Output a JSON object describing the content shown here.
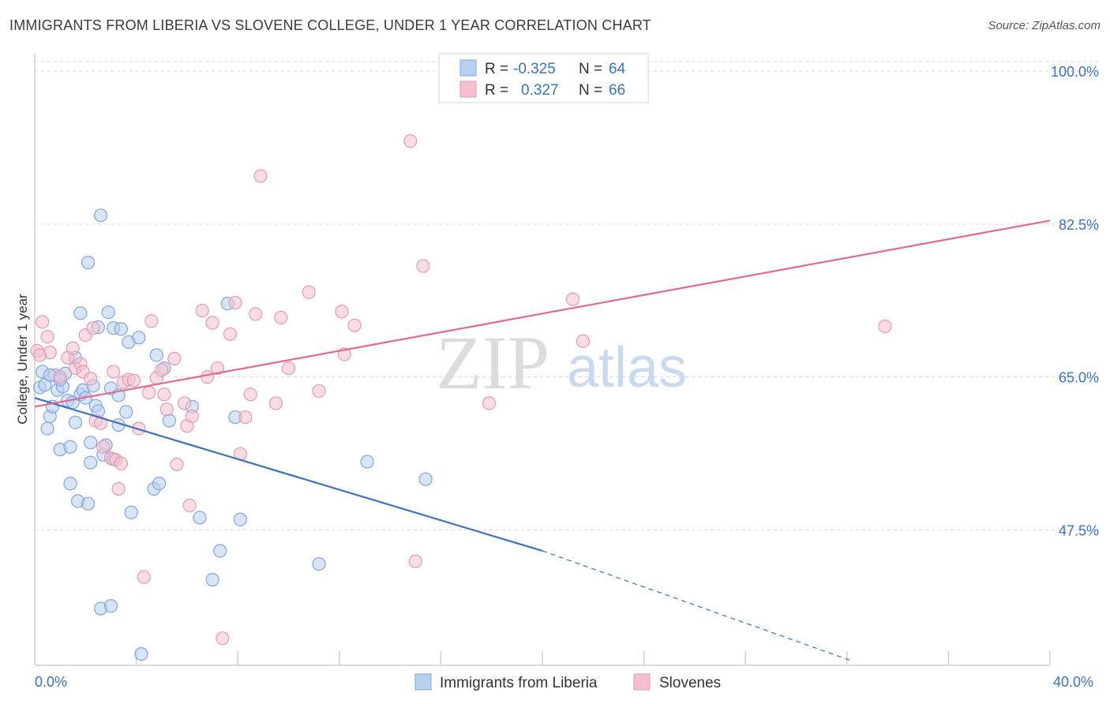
{
  "title": "IMMIGRANTS FROM LIBERIA VS SLOVENE COLLEGE, UNDER 1 YEAR CORRELATION CHART",
  "source": "Source: ZipAtlas.com",
  "watermark": {
    "zip": "ZIP",
    "atlas": "atlas"
  },
  "legend": {
    "r_label": "R =",
    "n_label": "N =",
    "rows": [
      {
        "r": "-0.325",
        "n": "64"
      },
      {
        "r": "0.327",
        "n": "66"
      }
    ]
  },
  "colors": {
    "blue": "#3a72c4",
    "blue_fill": "#b8d0f0",
    "pink": "#e06a92",
    "pink_fill": "#f5bfd0",
    "grid": "#d8d8d8"
  },
  "chart_data": {
    "type": "scatter",
    "title": "IMMIGRANTS FROM LIBERIA VS SLOVENE COLLEGE, UNDER 1 YEAR CORRELATION CHART",
    "xlabel": "",
    "ylabel": "College, Under 1 year",
    "xlim": [
      0,
      40
    ],
    "ylim": [
      32,
      102
    ],
    "x_tick_labels": [
      "0.0%",
      "40.0%"
    ],
    "y_ticks": [
      47.5,
      65.0,
      82.5,
      100.0
    ],
    "y_tick_labels": [
      "47.5%",
      "65.0%",
      "82.5%",
      "100.0%"
    ],
    "grid": true,
    "legend_position": "bottom",
    "series": [
      {
        "name": "Immigrants from Liberia",
        "color": "#3a72c4",
        "r": -0.325,
        "n": 64,
        "trend": {
          "x": [
            0,
            20
          ],
          "y": [
            62.6,
            45.1
          ],
          "dashed_to": [
            32.2,
            32.5
          ]
        },
        "points": [
          [
            0.2,
            63.8
          ],
          [
            0.3,
            65.6
          ],
          [
            0.4,
            64.1
          ],
          [
            0.5,
            59.1
          ],
          [
            0.6,
            60.5
          ],
          [
            0.7,
            61.6
          ],
          [
            0.8,
            65.2
          ],
          [
            0.9,
            63.5
          ],
          [
            1.0,
            56.7
          ],
          [
            1.1,
            63.9
          ],
          [
            1.2,
            65.4
          ],
          [
            1.3,
            62.3
          ],
          [
            1.4,
            57.0
          ],
          [
            1.4,
            52.8
          ],
          [
            1.5,
            62.1
          ],
          [
            1.6,
            67.2
          ],
          [
            1.6,
            59.8
          ],
          [
            1.7,
            50.8
          ],
          [
            1.8,
            63.0
          ],
          [
            1.8,
            72.3
          ],
          [
            1.9,
            63.5
          ],
          [
            2.0,
            62.6
          ],
          [
            2.1,
            50.5
          ],
          [
            2.1,
            78.1
          ],
          [
            2.2,
            57.5
          ],
          [
            2.2,
            55.2
          ],
          [
            2.4,
            61.7
          ],
          [
            2.5,
            70.7
          ],
          [
            2.5,
            61.1
          ],
          [
            2.6,
            38.5
          ],
          [
            2.6,
            83.5
          ],
          [
            2.7,
            56.1
          ],
          [
            2.8,
            57.2
          ],
          [
            2.9,
            72.4
          ],
          [
            3.0,
            63.7
          ],
          [
            3.0,
            38.8
          ],
          [
            3.1,
            55.6
          ],
          [
            3.1,
            70.6
          ],
          [
            3.3,
            62.9
          ],
          [
            3.3,
            59.5
          ],
          [
            3.4,
            70.5
          ],
          [
            3.6,
            61.0
          ],
          [
            3.7,
            69.0
          ],
          [
            3.8,
            49.5
          ],
          [
            4.1,
            69.5
          ],
          [
            4.7,
            52.2
          ],
          [
            4.8,
            67.5
          ],
          [
            4.9,
            52.8
          ],
          [
            5.1,
            66.0
          ],
          [
            5.3,
            60.0
          ],
          [
            6.2,
            61.6
          ],
          [
            6.5,
            48.9
          ],
          [
            7.0,
            41.8
          ],
          [
            7.3,
            45.1
          ],
          [
            7.6,
            73.4
          ],
          [
            7.9,
            60.4
          ],
          [
            8.1,
            48.7
          ],
          [
            11.2,
            43.6
          ],
          [
            13.1,
            55.3
          ],
          [
            15.4,
            53.3
          ],
          [
            4.2,
            33.3
          ],
          [
            0.6,
            65.2
          ],
          [
            1.0,
            64.7
          ],
          [
            2.3,
            64.0
          ]
        ]
      },
      {
        "name": "Slovenes",
        "color": "#e06a92",
        "r": 0.327,
        "n": 66,
        "trend": {
          "x": [
            0,
            40
          ],
          "y": [
            61.6,
            82.9
          ]
        },
        "points": [
          [
            0.1,
            68.0
          ],
          [
            0.3,
            71.3
          ],
          [
            0.5,
            69.6
          ],
          [
            0.6,
            67.8
          ],
          [
            1.0,
            65.0
          ],
          [
            1.3,
            67.2
          ],
          [
            1.5,
            68.3
          ],
          [
            1.6,
            66.0
          ],
          [
            1.8,
            66.5
          ],
          [
            1.9,
            65.6
          ],
          [
            2.0,
            69.8
          ],
          [
            2.2,
            64.8
          ],
          [
            2.3,
            70.6
          ],
          [
            2.4,
            60.0
          ],
          [
            2.6,
            59.7
          ],
          [
            2.7,
            57.0
          ],
          [
            3.0,
            55.7
          ],
          [
            3.1,
            65.6
          ],
          [
            3.2,
            55.5
          ],
          [
            3.3,
            52.2
          ],
          [
            3.4,
            55.1
          ],
          [
            3.5,
            64.4
          ],
          [
            3.7,
            64.7
          ],
          [
            3.9,
            64.6
          ],
          [
            4.1,
            59.1
          ],
          [
            4.3,
            42.1
          ],
          [
            4.5,
            63.2
          ],
          [
            4.6,
            71.4
          ],
          [
            4.8,
            64.9
          ],
          [
            5.0,
            65.8
          ],
          [
            5.1,
            63.0
          ],
          [
            5.2,
            61.3
          ],
          [
            5.5,
            67.1
          ],
          [
            5.6,
            55.0
          ],
          [
            5.9,
            62.0
          ],
          [
            6.0,
            59.4
          ],
          [
            6.1,
            50.3
          ],
          [
            6.2,
            60.5
          ],
          [
            6.6,
            72.6
          ],
          [
            6.8,
            65.0
          ],
          [
            7.0,
            71.2
          ],
          [
            7.2,
            66.0
          ],
          [
            7.4,
            35.1
          ],
          [
            7.7,
            69.9
          ],
          [
            7.9,
            73.5
          ],
          [
            8.1,
            56.2
          ],
          [
            8.3,
            60.4
          ],
          [
            8.5,
            63.0
          ],
          [
            8.7,
            72.2
          ],
          [
            8.9,
            88.0
          ],
          [
            9.5,
            62.0
          ],
          [
            9.7,
            71.8
          ],
          [
            10.0,
            66.0
          ],
          [
            10.8,
            74.7
          ],
          [
            11.2,
            63.4
          ],
          [
            12.1,
            72.5
          ],
          [
            12.2,
            67.6
          ],
          [
            12.6,
            70.9
          ],
          [
            14.8,
            92.0
          ],
          [
            15.0,
            43.9
          ],
          [
            15.3,
            77.7
          ],
          [
            17.9,
            62.0
          ],
          [
            21.2,
            73.9
          ],
          [
            21.6,
            69.1
          ],
          [
            33.5,
            70.8
          ],
          [
            0.2,
            67.5
          ]
        ]
      }
    ]
  },
  "bottom_legend": [
    "Immigrants from Liberia",
    "Slovenes"
  ]
}
